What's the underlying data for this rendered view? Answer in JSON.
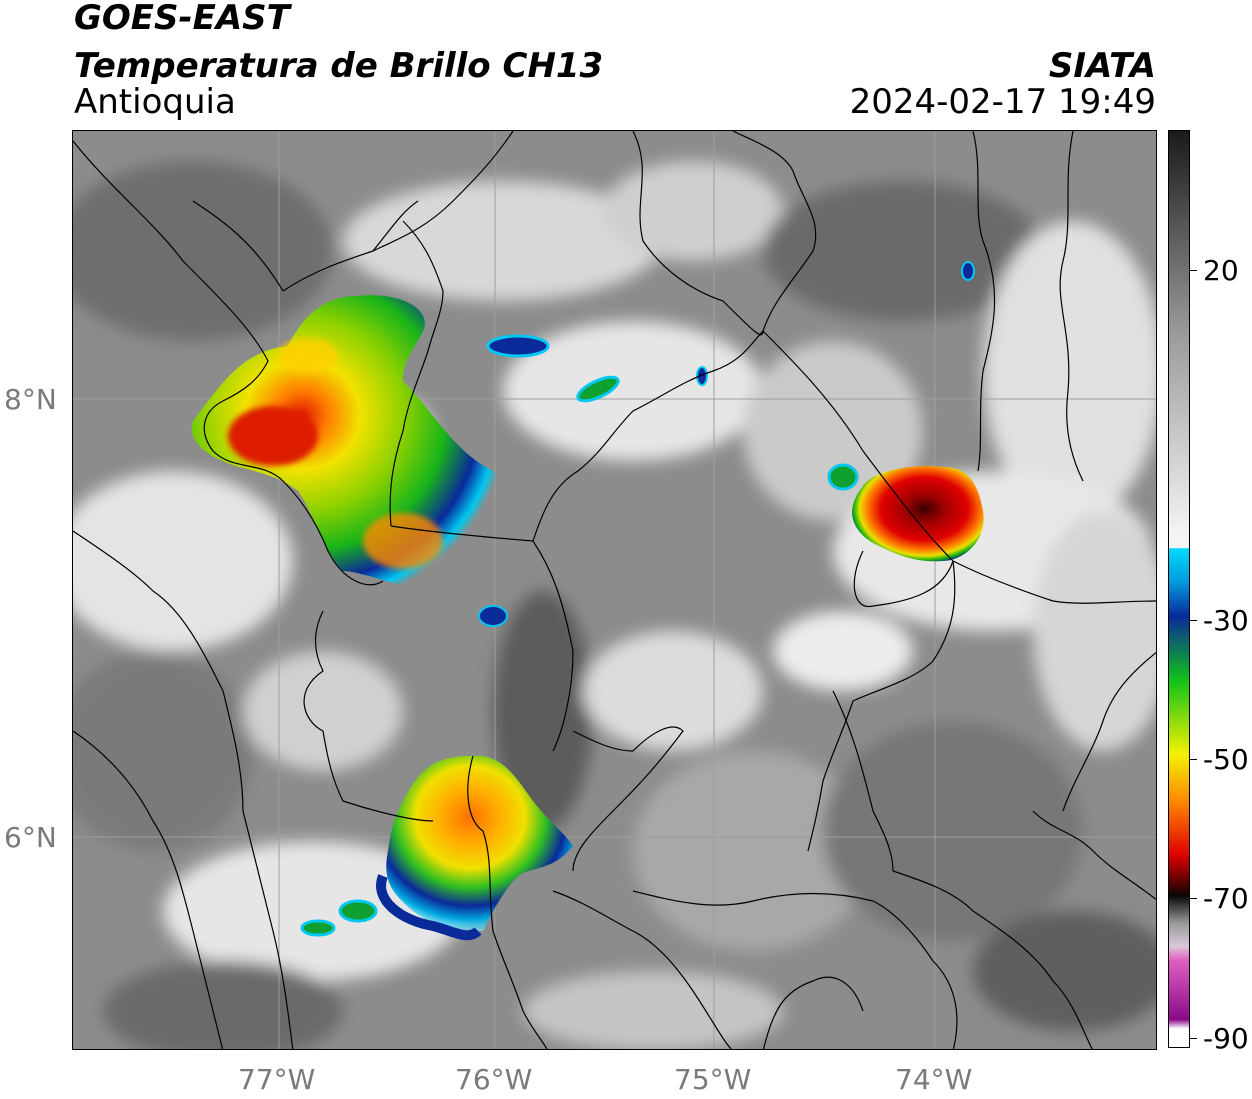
{
  "header": {
    "satellite": "GOES-EAST",
    "product": "Temperatura de Brillo CH13",
    "region": "Antioquia",
    "organization": "SIATA",
    "datetime": "2024-02-17 19:49"
  },
  "map": {
    "lon_labels": [
      "77°W",
      "76°W",
      "75°W",
      "74°W"
    ],
    "lat_labels": [
      "8°N",
      "6°N"
    ],
    "gridlines": true,
    "background": "grayscale cloud-top brightness temperature imagery",
    "storm_cells": [
      {
        "name": "northwest-cell-uraba",
        "min_temp_color": "red"
      },
      {
        "name": "east-cell",
        "min_temp_color": "dark-red"
      },
      {
        "name": "south-cell",
        "min_temp_color": "orange"
      }
    ]
  },
  "colorbar": {
    "tick_labels": [
      "20",
      "-30",
      "-50",
      "-70",
      "-90"
    ],
    "colors": {
      "gray_top": "#1a1a1a",
      "gray_mid": "#9a9a9a",
      "white": "#f4f4f4",
      "cyan": "#00d8ff",
      "blue": "#0a2a9a",
      "green": "#12c21a",
      "yellow": "#f2f200",
      "orange": "#ff8c00",
      "red": "#e00000",
      "dark_red": "#5a0000",
      "black": "#080808",
      "pink": "#e060c0",
      "purple": "#8a0a8a"
    }
  }
}
